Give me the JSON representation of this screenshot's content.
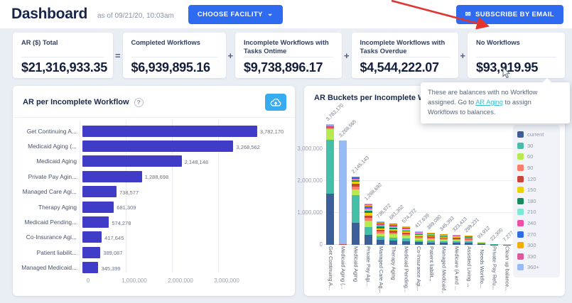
{
  "header": {
    "title": "Dashboard",
    "as_of": "as of 09/21/20, 10:03am",
    "choose_facility": "CHOOSE FACILITY",
    "subscribe": "SUBSCRIBE BY EMAIL"
  },
  "icons": {
    "chevron_down": "⌄",
    "envelope": "✉",
    "question_mark": "?"
  },
  "colors": {
    "primary_button": "#2f6bf0",
    "chart_button": "#38acf0",
    "left_bar": "#413cc7",
    "annotation_arrow": "#e3342f",
    "link": "#3bbcd4"
  },
  "equation": {
    "operators": [
      "=",
      "+",
      "+",
      "+"
    ],
    "cards": [
      {
        "label": "AR ($) Total",
        "value": "$21,316,933.35"
      },
      {
        "label": "Completed Workflows",
        "value": "$6,939,895.16"
      },
      {
        "label": "Incomplete Workflows with Tasks Ontime",
        "value": "$9,738,896.17"
      },
      {
        "label": "Incomplete Workflows with Tasks Overdue",
        "value": "$4,544,222.07"
      },
      {
        "label": "No Workflows",
        "value": "$93,919.95"
      }
    ]
  },
  "tooltip": {
    "text_before": "These are balances with no Workflow assigned. Go to ",
    "link": "AR Aging",
    "text_after": " to assign Workflows to balances."
  },
  "left_panel": {
    "title": "AR per Incomplete Workflow"
  },
  "right_panel": {
    "title": "AR Buckets per Incomplete Workflow",
    "legend_title": "Legend"
  },
  "chart_data": [
    {
      "type": "bar",
      "orientation": "horizontal",
      "title": "AR per Incomplete Workflow",
      "categories": [
        "Get Continuing A...",
        "Medicaid Aging (...",
        "Medicaid Aging",
        "Private Pay Agin...",
        "Managed Care Agi...",
        "Therapy Aging",
        "Medicaid Pending...",
        "Co-Insurance Agi...",
        "Patient liabilit...",
        "Managed Medicaid..."
      ],
      "values": [
        3782170,
        3268562,
        2148148,
        1288698,
        738577,
        681309,
        574278,
        417645,
        389087,
        345399
      ],
      "value_labels": [
        "3,782,170",
        "3,268,562",
        "2,148,148",
        "1,288,698",
        "738,577",
        "681,309",
        "574,278",
        "417,645",
        "389,087",
        "345,399"
      ],
      "xticks": [
        "0",
        "1,000,000",
        "2,000,000",
        "3,000,000"
      ],
      "xtick_values": [
        0,
        1000000,
        2000000,
        3000000
      ],
      "xlim": [
        0,
        4300000
      ],
      "bar_color": "#413cc7",
      "grid": true,
      "legend_position": "none"
    },
    {
      "type": "bar",
      "stacked": true,
      "title": "AR Buckets per Incomplete Workflow",
      "categories": [
        "Get Continuing A...",
        "Medicaid Aging (...",
        "Medicaid Aging",
        "Private Pay Agi...",
        "Managed Care Ag...",
        "Therapy Aging",
        "Medicaid Pending...",
        "Co-Insurance Agi...",
        "Patient liabilit...",
        "Managed Medicaid...",
        "Medicare (A and ...",
        "Assisted Living ...",
        "- Needs Workflo...",
        "Private Pay Refu...",
        "Clean up balance..."
      ],
      "totals": [
        3782170,
        3268565,
        2145143,
        1288692,
        738572,
        681302,
        574272,
        417639,
        389080,
        345393,
        323413,
        299231,
        93912,
        22300,
        7277
      ],
      "total_labels": [
        "3,782,170",
        "3,268,565",
        "2,145,143",
        "1,288,692",
        "738,572",
        "681,302",
        "574,272",
        "417,639",
        "389,080",
        "345,393",
        "323,413",
        "299,231",
        "93,912",
        "22,300",
        "7,277"
      ],
      "buckets": [
        "current",
        "30",
        "60",
        "90",
        "120",
        "150",
        "180",
        "210",
        "240",
        "270",
        "300",
        "330",
        "360+"
      ],
      "bucket_colors": [
        "#3c5e99",
        "#45bfa7",
        "#b7ea4d",
        "#fc7e6a",
        "#cc4437",
        "#eed300",
        "#178a5b",
        "#7ce9d6",
        "#ee4fa4",
        "#2e6ce6",
        "#f2ad00",
        "#e1569d",
        "#97bbf5"
      ],
      "series_by_bar": [
        [
          1600000,
          1700000,
          330000,
          45000,
          25000,
          0,
          0,
          0,
          30000,
          0,
          0,
          22170,
          30000
        ],
        [
          0,
          0,
          0,
          0,
          20000,
          0,
          0,
          0,
          0,
          0,
          0,
          0,
          3248565
        ],
        [
          700000,
          850000,
          190000,
          85000,
          95000,
          65000,
          40000,
          30000,
          30000,
          25000,
          15000,
          10000,
          10143
        ],
        [
          320000,
          240000,
          190000,
          90000,
          85000,
          75000,
          60000,
          50000,
          50000,
          45000,
          35000,
          25000,
          23692
        ],
        [
          150000,
          110000,
          100000,
          60000,
          55000,
          50000,
          45000,
          40000,
          35000,
          30000,
          25000,
          20000,
          18572
        ],
        [
          130000,
          100000,
          95000,
          60000,
          55000,
          48000,
          42000,
          38000,
          33000,
          28000,
          22000,
          16000,
          14302
        ],
        [
          110000,
          90000,
          80000,
          52000,
          46000,
          40000,
          36000,
          32000,
          28000,
          24000,
          18000,
          12000,
          6272
        ],
        [
          80000,
          65000,
          60000,
          40000,
          34000,
          30000,
          26000,
          22000,
          19000,
          15000,
          12000,
          8000,
          6639
        ],
        [
          75000,
          60000,
          55000,
          37000,
          32000,
          28000,
          24000,
          20000,
          18000,
          14000,
          11000,
          8000,
          7080
        ],
        [
          66000,
          54000,
          48000,
          33000,
          29000,
          25000,
          21000,
          18000,
          16000,
          13000,
          10000,
          7000,
          5393
        ],
        [
          62000,
          50000,
          45000,
          31000,
          27000,
          23000,
          20000,
          17000,
          15000,
          12000,
          9000,
          7000,
          5413
        ],
        [
          57000,
          46000,
          42000,
          29000,
          25000,
          22000,
          18000,
          16000,
          14000,
          11000,
          8000,
          6000,
          5231
        ],
        [
          40000,
          15000,
          10000,
          8000,
          6000,
          5000,
          4000,
          3000,
          2912,
          0,
          0,
          0,
          0
        ],
        [
          10000,
          5000,
          4000,
          3300,
          0,
          0,
          0,
          0,
          0,
          0,
          0,
          0,
          0
        ],
        [
          4000,
          2000,
          1277,
          0,
          0,
          0,
          0,
          0,
          0,
          0,
          0,
          0,
          0
        ]
      ],
      "yticks": [
        "0",
        "1,000,000",
        "2,000,000",
        "3,000,000"
      ],
      "ytick_values": [
        0,
        1000000,
        2000000,
        3000000
      ],
      "ylim": [
        0,
        3900000
      ],
      "grid": true,
      "legend_position": "right"
    }
  ]
}
